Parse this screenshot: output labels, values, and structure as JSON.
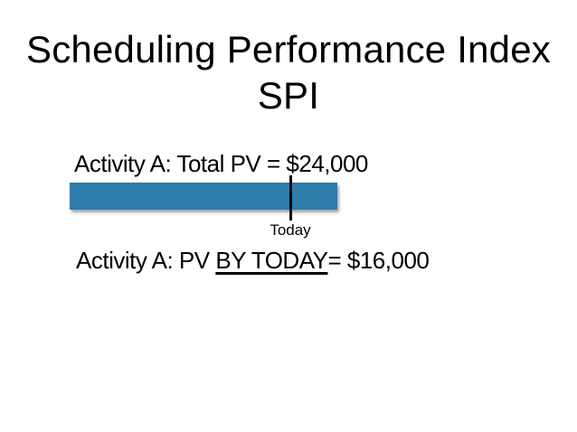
{
  "slide": {
    "title": {
      "line1": "Scheduling Performance Index",
      "line2": "SPI"
    },
    "activity_total": {
      "text": "Activity A: Total PV = $24,000"
    },
    "activity_today": {
      "prefix": "Activity A: PV ",
      "underlined": "BY TODAY",
      "suffix": "= $16,000"
    },
    "today_marker": {
      "label": "Today"
    },
    "colors": {
      "bar_fill": "#2E7CAB",
      "background": "#FFFFFF",
      "text": "#000000"
    }
  }
}
